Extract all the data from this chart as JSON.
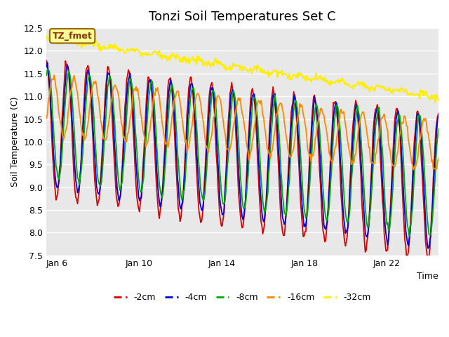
{
  "title": "Tonzi Soil Temperatures Set C",
  "xlabel": "Time",
  "ylabel": "Soil Temperature (C)",
  "ylim": [
    7.5,
    12.5
  ],
  "annotation": "TZ_fmet",
  "legend_labels": [
    "-2cm",
    "-4cm",
    "-8cm",
    "-16cm",
    "-32cm"
  ],
  "line_colors": [
    "#dd0000",
    "#0000dd",
    "#00aa00",
    "#ff8800",
    "#ffee00"
  ],
  "line_widths": [
    1.3,
    1.3,
    1.3,
    1.3,
    1.5
  ],
  "xtick_labels": [
    "Jan 6",
    "Jan 10",
    "Jan 14",
    "Jan 18",
    "Jan 22"
  ],
  "xtick_positions": [
    5.5,
    9.5,
    13.5,
    17.5,
    21.5
  ],
  "ytick_values": [
    7.5,
    8.0,
    8.5,
    9.0,
    9.5,
    10.0,
    10.5,
    11.0,
    11.5,
    12.0,
    12.5
  ],
  "plot_bg_color": "#e8e8e8",
  "fig_bg_color": "#ffffff",
  "grid_color": "#ffffff",
  "title_fontsize": 13,
  "axis_fontsize": 9,
  "legend_fontsize": 9,
  "annotation_bg": "#ffff99",
  "annotation_border": "#996600",
  "annotation_text_color": "#883300"
}
